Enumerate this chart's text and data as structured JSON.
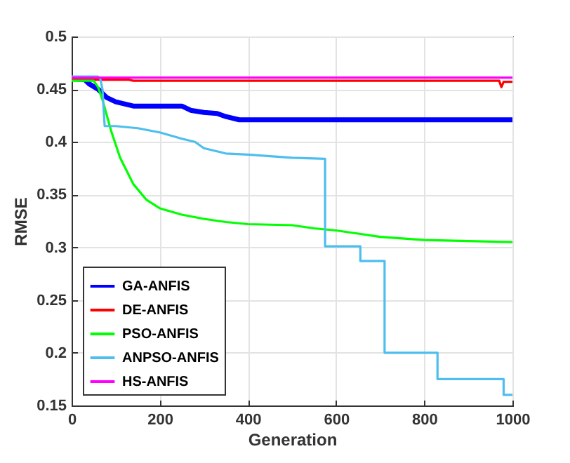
{
  "chart_data": {
    "type": "line",
    "xlabel": "Generation",
    "ylabel": "RMSE",
    "xlim": [
      0,
      1000
    ],
    "ylim": [
      0.15,
      0.5
    ],
    "xticks": [
      0,
      200,
      400,
      600,
      800,
      1000
    ],
    "yticks": [
      0.15,
      0.2,
      0.25,
      0.3,
      0.35,
      0.4,
      0.45,
      0.5
    ],
    "grid": true,
    "legend": "bottom left",
    "line_style": "solid",
    "series": [
      {
        "name": "GA-ANFIS",
        "color": "#0000ff",
        "x": [
          0,
          30,
          40,
          60,
          80,
          100,
          130,
          140,
          250,
          270,
          300,
          330,
          350,
          380,
          1000
        ],
        "values": [
          0.46,
          0.459,
          0.455,
          0.45,
          0.442,
          0.438,
          0.435,
          0.434,
          0.434,
          0.43,
          0.428,
          0.427,
          0.424,
          0.421,
          0.421
        ]
      },
      {
        "name": "DE-ANFIS",
        "color": "#ff0000",
        "x": [
          0,
          130,
          140,
          970,
          975,
          980,
          1000
        ],
        "values": [
          0.459,
          0.459,
          0.458,
          0.458,
          0.452,
          0.457,
          0.457
        ]
      },
      {
        "name": "PSO-ANFIS",
        "color": "#00ff00",
        "x": [
          0,
          50,
          60,
          70,
          90,
          110,
          140,
          170,
          200,
          250,
          300,
          350,
          400,
          500,
          550,
          600,
          650,
          700,
          800,
          1000
        ],
        "values": [
          0.458,
          0.458,
          0.452,
          0.44,
          0.41,
          0.385,
          0.36,
          0.345,
          0.337,
          0.331,
          0.327,
          0.324,
          0.322,
          0.321,
          0.318,
          0.316,
          0.313,
          0.31,
          0.307,
          0.305
        ]
      },
      {
        "name": "ANPSO-ANFIS",
        "color": "#4dbeee",
        "x": [
          0,
          60,
          65,
          70,
          75,
          100,
          150,
          200,
          250,
          280,
          300,
          350,
          400,
          500,
          575,
          575,
          655,
          655,
          710,
          710,
          830,
          830,
          980,
          980,
          1000
        ],
        "values": [
          0.462,
          0.462,
          0.46,
          0.45,
          0.415,
          0.415,
          0.413,
          0.409,
          0.403,
          0.4,
          0.394,
          0.389,
          0.388,
          0.385,
          0.384,
          0.301,
          0.301,
          0.287,
          0.287,
          0.2,
          0.2,
          0.175,
          0.175,
          0.16,
          0.16
        ]
      },
      {
        "name": "HS-ANFIS",
        "color": "#ff00ff",
        "x": [
          0,
          1000
        ],
        "values": [
          0.461,
          0.461
        ]
      }
    ]
  }
}
